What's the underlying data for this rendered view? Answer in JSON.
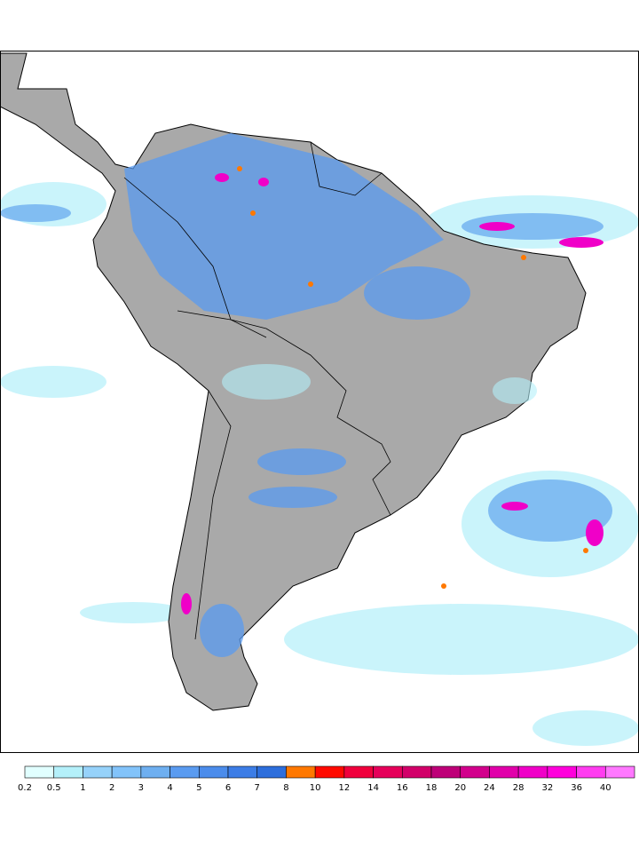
{
  "legend": {
    "items": [
      {
        "label": "0.2",
        "color": "#e1ffff"
      },
      {
        "label": "0.5",
        "color": "#b4f0fa"
      },
      {
        "label": "1",
        "color": "#96d2fa"
      },
      {
        "label": "2",
        "color": "#82c3fa"
      },
      {
        "label": "3",
        "color": "#6eaff0"
      },
      {
        "label": "4",
        "color": "#5a9bf0"
      },
      {
        "label": "5",
        "color": "#4b8ceb"
      },
      {
        "label": "6",
        "color": "#3c7de6"
      },
      {
        "label": "7",
        "color": "#2d6edc"
      },
      {
        "label": "8",
        "color": "#ff7800"
      },
      {
        "label": "10",
        "color": "#ff0a00"
      },
      {
        "label": "12",
        "color": "#f0003c"
      },
      {
        "label": "14",
        "color": "#e6005a"
      },
      {
        "label": "16",
        "color": "#d20069"
      },
      {
        "label": "18",
        "color": "#be0078"
      },
      {
        "label": "20",
        "color": "#d2008c"
      },
      {
        "label": "24",
        "color": "#e100aa"
      },
      {
        "label": "28",
        "color": "#f000c8"
      },
      {
        "label": "32",
        "color": "#ff00dc"
      },
      {
        "label": "36",
        "color": "#ff3cf0"
      },
      {
        "label": "40",
        "color": "#ff78ff"
      }
    ]
  }
}
